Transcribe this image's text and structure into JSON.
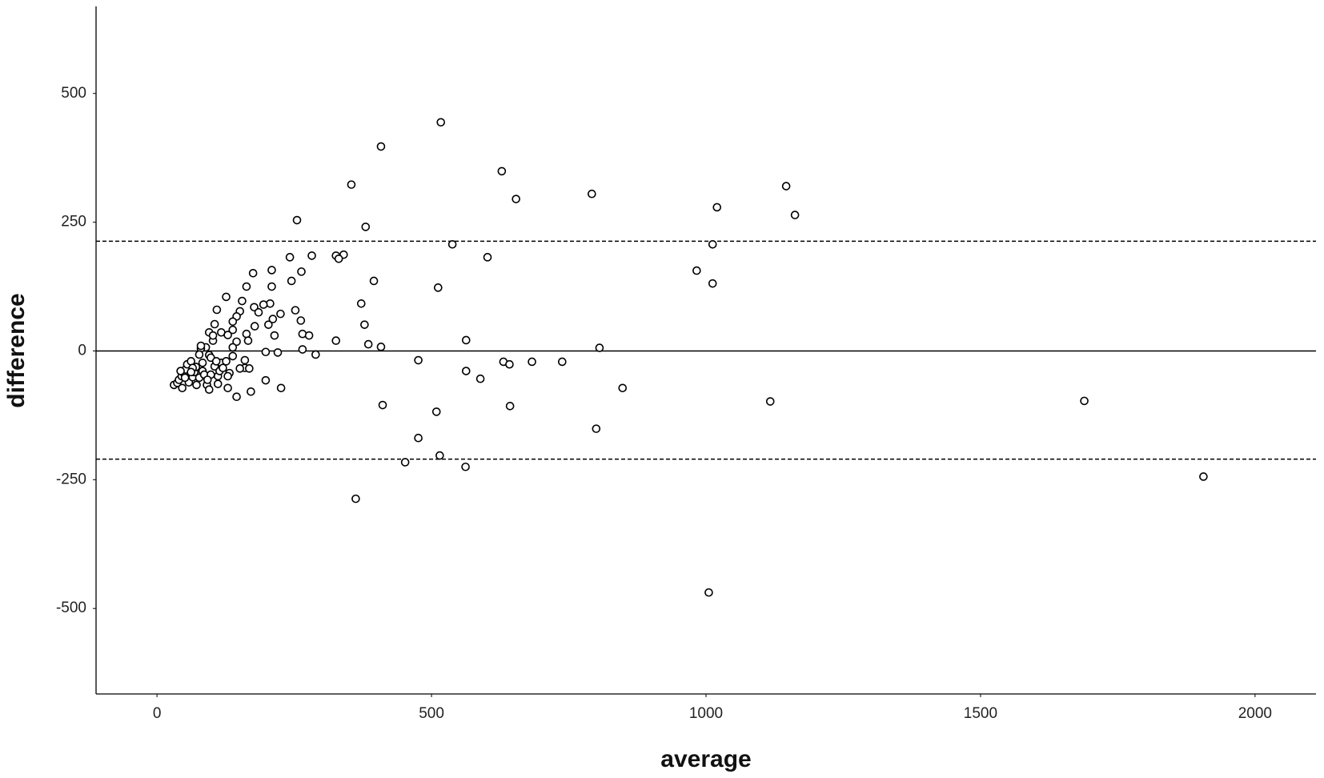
{
  "chart_data": {
    "type": "scatter",
    "x_label": "average",
    "y_label": "difference",
    "xlim": [
      -111,
      2111
    ],
    "ylim": [
      -666,
      669
    ],
    "xticks": [
      0,
      500,
      1000,
      1500,
      2000
    ],
    "yticks": [
      -500,
      -250,
      0,
      250,
      500
    ],
    "marker_color": "#000000",
    "reference_lines": [
      {
        "value": 0,
        "style": "solid"
      },
      {
        "value": 213,
        "style": "dashed"
      },
      {
        "value": -210,
        "style": "dashed"
      }
    ],
    "x": [
      517,
      408,
      628,
      354,
      1146,
      654,
      792,
      1020,
      1162,
      255,
      380,
      1012,
      538,
      602,
      242,
      282,
      326,
      340,
      331,
      983,
      209,
      175,
      263,
      245,
      395,
      1012,
      512,
      209,
      163,
      126,
      372,
      155,
      206,
      194,
      177,
      109,
      252,
      151,
      185,
      225,
      145,
      211,
      262,
      138,
      105,
      203,
      378,
      178,
      138,
      95,
      117,
      129,
      163,
      214,
      265,
      277,
      326,
      166,
      145,
      102,
      385,
      408,
      806,
      265,
      563,
      138,
      89,
      80,
      198,
      220,
      289,
      138,
      95,
      160,
      476,
      631,
      642,
      683,
      738,
      563,
      160,
      151,
      168,
      132,
      589,
      198,
      226,
      171,
      848,
      145,
      1117,
      1689,
      411,
      643,
      509,
      476,
      800,
      515,
      452,
      562,
      362,
      1906,
      1005,
      31,
      37,
      40,
      45,
      49,
      52,
      55,
      46,
      58,
      65,
      68,
      71,
      62,
      72,
      77,
      83,
      77,
      83,
      86,
      91,
      95,
      98,
      105,
      111,
      114,
      117,
      126,
      129,
      120,
      92,
      65,
      62,
      51,
      80,
      98,
      108,
      111,
      129,
      102,
      43
    ],
    "values": [
      444,
      397,
      349,
      323,
      320,
      295,
      305,
      279,
      264,
      254,
      241,
      207,
      207,
      182,
      182,
      185,
      185,
      187,
      179,
      156,
      157,
      151,
      154,
      136,
      136,
      131,
      123,
      125,
      125,
      105,
      92,
      97,
      92,
      90,
      85,
      80,
      79,
      77,
      75,
      72,
      67,
      62,
      59,
      57,
      52,
      51,
      51,
      48,
      41,
      36,
      36,
      31,
      33,
      30,
      33,
      30,
      20,
      20,
      18,
      20,
      13,
      8,
      6,
      3,
      21,
      7,
      7,
      5,
      -2,
      -3,
      -7,
      -10,
      -8,
      -18,
      -18,
      -21,
      -26,
      -21,
      -21,
      -39,
      -33,
      -34,
      -34,
      -43,
      -54,
      -57,
      -72,
      -79,
      -72,
      -89,
      -98,
      -97,
      -105,
      -107,
      -118,
      -169,
      -151,
      -203,
      -216,
      -225,
      -287,
      -244,
      -469,
      -66,
      -62,
      -56,
      -49,
      -43,
      -36,
      -26,
      -72,
      -61,
      -51,
      -41,
      -31,
      -20,
      -66,
      -52,
      -39,
      -7,
      -23,
      -46,
      -66,
      -75,
      -46,
      -30,
      -49,
      -39,
      -23,
      -20,
      -49,
      -33,
      -56,
      -33,
      -41,
      -52,
      10,
      -13,
      -20,
      -64,
      -72,
      30,
      -39
    ]
  }
}
